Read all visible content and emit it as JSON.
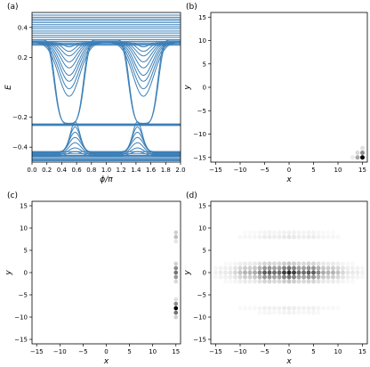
{
  "chart_data": [
    {
      "panel_label": "(a)",
      "type": "line",
      "xlabel": "ϕ/π",
      "ylabel": "E",
      "xlim": [
        0,
        2
      ],
      "ylim": [
        -0.5,
        0.5
      ],
      "x_ticks": [
        "0.0",
        "0.2",
        "0.4",
        "0.6",
        "0.8",
        "1.0",
        "1.2",
        "1.4",
        "1.6",
        "1.8",
        "2.0"
      ],
      "y_ticks": [
        "-0.4",
        "-0.2",
        "0.2",
        "0.4"
      ],
      "line_color": "#3b7fb8",
      "flat_levels": [
        0.482,
        0.468,
        0.456,
        0.445,
        0.432,
        0.418,
        0.405,
        0.392,
        0.376,
        0.362,
        0.347,
        0.333,
        0.318,
        0.306,
        0.296,
        0.288,
        0.281,
        -0.245,
        -0.25,
        -0.255,
        -0.43,
        -0.445,
        -0.455,
        -0.462,
        -0.47,
        -0.478,
        -0.485,
        -0.49
      ],
      "dips": [
        {
          "depth": 0.03,
          "width": 0.1
        },
        {
          "depth": 0.06,
          "width": 0.12
        },
        {
          "depth": 0.09,
          "width": 0.14
        },
        {
          "depth": 0.13,
          "width": 0.15
        },
        {
          "depth": 0.17,
          "width": 0.16
        },
        {
          "depth": 0.22,
          "width": 0.17
        },
        {
          "depth": 0.26,
          "width": 0.18
        },
        {
          "depth": 0.31,
          "width": 0.19
        },
        {
          "depth": 0.36,
          "width": 0.2
        }
      ],
      "edge_states": [
        {
          "base": 0.315,
          "depth": 0.56,
          "width": 0.21
        },
        {
          "base": 0.305,
          "depth": 0.545,
          "width": 0.22
        }
      ],
      "bumps": [
        {
          "base": -0.43,
          "height": 0.2,
          "width": 0.09
        },
        {
          "base": -0.435,
          "height": 0.17,
          "width": 0.1
        },
        {
          "base": -0.44,
          "height": 0.14,
          "width": 0.11
        },
        {
          "base": -0.445,
          "height": 0.11,
          "width": 0.12
        },
        {
          "base": -0.45,
          "height": 0.08,
          "width": 0.12
        },
        {
          "base": -0.455,
          "height": 0.05,
          "width": 0.13
        },
        {
          "base": -0.46,
          "height": 0.03,
          "width": 0.13
        }
      ],
      "dip_centers": [
        0.5,
        1.5
      ],
      "bump_centers": [
        0.58,
        1.42
      ]
    },
    {
      "panel_label": "(b)",
      "type": "heatmap",
      "xlabel": "x",
      "ylabel": "y",
      "xlim": [
        -16,
        16
      ],
      "ylim": [
        -16,
        16
      ],
      "x_ticks": [
        "-15",
        "-10",
        "-5",
        "0",
        "5",
        "10",
        "15"
      ],
      "y_ticks": [
        "-15",
        "-10",
        "-5",
        "0",
        "5",
        "10",
        "15"
      ],
      "points": [
        {
          "x": 15,
          "y": -15,
          "v": 1.0
        },
        {
          "x": 15,
          "y": -14,
          "v": 0.45
        },
        {
          "x": 14,
          "y": -15,
          "v": 0.35
        },
        {
          "x": 15,
          "y": -13,
          "v": 0.12
        },
        {
          "x": 14,
          "y": -14,
          "v": 0.15
        },
        {
          "x": 13,
          "y": -15,
          "v": 0.08
        }
      ]
    },
    {
      "panel_label": "(c)",
      "type": "heatmap",
      "xlabel": "x",
      "ylabel": "y",
      "xlim": [
        -16,
        16
      ],
      "ylim": [
        -16,
        16
      ],
      "x_ticks": [
        "-15",
        "-10",
        "-5",
        "0",
        "5",
        "10",
        "15"
      ],
      "y_ticks": [
        "-15",
        "-10",
        "-5",
        "0",
        "5",
        "10",
        "15"
      ],
      "points": [
        {
          "x": 15,
          "y": -8,
          "v": 1.0
        },
        {
          "x": 15,
          "y": -9,
          "v": 0.55
        },
        {
          "x": 15,
          "y": -7,
          "v": 0.45
        },
        {
          "x": 15,
          "y": -10,
          "v": 0.18
        },
        {
          "x": 15,
          "y": -6,
          "v": 0.12
        },
        {
          "x": 15,
          "y": 0,
          "v": 0.55
        },
        {
          "x": 15,
          "y": 1,
          "v": 0.45
        },
        {
          "x": 15,
          "y": -1,
          "v": 0.4
        },
        {
          "x": 15,
          "y": 2,
          "v": 0.18
        },
        {
          "x": 15,
          "y": -2,
          "v": 0.15
        },
        {
          "x": 15,
          "y": 8,
          "v": 0.25
        },
        {
          "x": 15,
          "y": 9,
          "v": 0.18
        },
        {
          "x": 15,
          "y": 7,
          "v": 0.1
        }
      ]
    },
    {
      "panel_label": "(d)",
      "type": "heatmap",
      "xlabel": "x",
      "ylabel": "y",
      "xlim": [
        -16,
        16
      ],
      "ylim": [
        -16,
        16
      ],
      "x_ticks": [
        "-15",
        "-10",
        "-5",
        "0",
        "5",
        "10",
        "15"
      ],
      "y_ticks": [
        "-15",
        "-10",
        "-5",
        "0",
        "5",
        "10",
        "15"
      ],
      "band_rows": [
        {
          "y": 0,
          "v": 0.85
        },
        {
          "y": 1,
          "v": 0.55
        },
        {
          "y": -1,
          "v": 0.55
        },
        {
          "y": 2,
          "v": 0.22
        },
        {
          "y": -2,
          "v": 0.22
        },
        {
          "y": 8,
          "v": 0.1
        },
        {
          "y": 9,
          "v": 0.06
        },
        {
          "y": -8,
          "v": 0.08
        },
        {
          "y": -9,
          "v": 0.05
        }
      ],
      "band_x_range": [
        -15,
        15
      ],
      "band_x_width": 9
    }
  ]
}
